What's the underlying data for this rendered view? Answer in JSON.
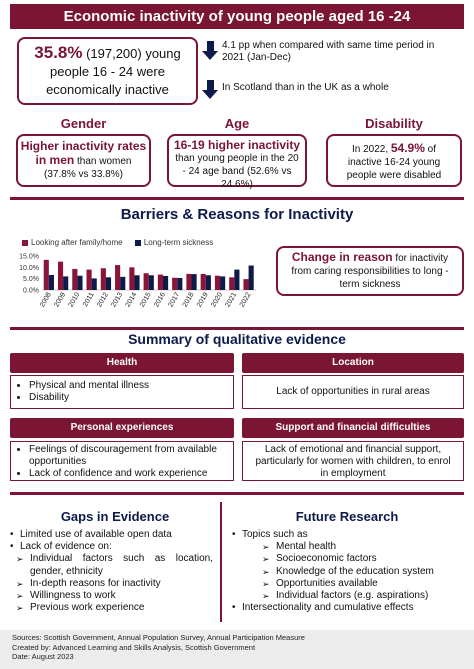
{
  "title": "Economic inactivity of young people aged 16 -24",
  "headline": {
    "pct": "35.8%",
    "rest_line1": " (197,200) young",
    "line2": "people 16 - 24 were",
    "line3": "economically inactive"
  },
  "changes": [
    {
      "direction": "down-arrow-icon",
      "text": "4.1 pp when compared with same time period in 2021 (Jan-Dec)"
    },
    {
      "direction": "down-arrow-icon",
      "text": "In Scotland than in the UK as a whole"
    }
  ],
  "gender": {
    "heading": "Gender",
    "highlight": "Higher inactivity rates in men",
    "text_a": " than women",
    "text_b": "(37.8% vs 33.8%)"
  },
  "age": {
    "heading": "Age",
    "highlight": "16-19 higher inactivity",
    "text": "than young people in the 20 - 24 age band (52.6% vs 24.6%)"
  },
  "disability": {
    "heading": "Disability",
    "text_a": "In 2022, ",
    "highlight": "54.9%",
    "text_b": " of inactive 16-24 young people were disabled"
  },
  "barriers_title": "Barriers & Reasons for Inactivity",
  "chart_data": {
    "type": "bar",
    "categories": [
      "2008",
      "2009",
      "2010",
      "2011",
      "2012",
      "2013",
      "2014",
      "2015",
      "2016",
      "2017",
      "2018",
      "2019",
      "2020",
      "2021",
      "2022"
    ],
    "series": [
      {
        "name": "Looking after family/home",
        "color": "#8b1538",
        "values": [
          13.3,
          12.5,
          9.3,
          9.0,
          9.6,
          11.0,
          10.0,
          7.4,
          6.8,
          5.4,
          7.1,
          7.1,
          6.3,
          5.6,
          4.8
        ]
      },
      {
        "name": "Long-term sickness",
        "color": "#0d1a4a",
        "values": [
          6.6,
          6.0,
          6.3,
          5.1,
          5.6,
          5.8,
          6.5,
          6.5,
          6.2,
          5.3,
          7.0,
          6.5,
          6.0,
          9.0,
          10.8
        ]
      }
    ],
    "yticks": [
      "0.0%",
      "5.0%",
      "10.0%",
      "15.0%"
    ],
    "ylim": [
      0,
      15
    ]
  },
  "change_box": {
    "highlight": "Change in reason",
    "text": " for inactivity from caring responsibilities to long - term sickness"
  },
  "qual_title": "Summary of qualitative evidence",
  "categories": [
    {
      "head": "Health",
      "items": [
        "Physical and mental illness",
        "Disability"
      ]
    },
    {
      "head": "Location",
      "text": "Lack of opportunities in rural areas"
    },
    {
      "head": "Personal experiences",
      "items": [
        "Feelings of discouragement from available opportunities",
        "Lack of confidence and work experience"
      ]
    },
    {
      "head": "Support and financial difficulties",
      "text": "Lack of emotional and financial support, particularly for women with children, to enrol in employment"
    }
  ],
  "gaps": {
    "title": "Gaps in Evidence",
    "items": [
      {
        "text": "Limited use of available open data",
        "level": "top"
      },
      {
        "text": "Lack of  evidence on:",
        "level": "top"
      },
      {
        "text": "Individual  factors  such  as  location, gender, ethnicity",
        "level": "sub"
      },
      {
        "text": "In-depth reasons for inactivity",
        "level": "sub"
      },
      {
        "text": "Willingness to work",
        "level": "sub"
      },
      {
        "text": "Previous work experience",
        "level": "sub"
      }
    ]
  },
  "future": {
    "title": "Future Research",
    "items": [
      {
        "text": "Topics such as",
        "level": "top"
      },
      {
        "text": "Mental health",
        "level": "sub"
      },
      {
        "text": "Socioeconomic  factors",
        "level": "sub"
      },
      {
        "text": "Knowledge of the education system",
        "level": "sub"
      },
      {
        "text": "Opportunities  available",
        "level": "sub"
      },
      {
        "text": "Individual factors (e.g. aspirations)",
        "level": "sub"
      },
      {
        "text": "Intersectionality and cumulative effects",
        "level": "top"
      }
    ]
  },
  "footer": {
    "sources": "Sources: Scottish Government, Annual Population Survey, Annual Participation Measure",
    "created": "Created by: Advanced Learning and Skills Analysis, Scottish Government",
    "date": "Date: August  2023"
  }
}
